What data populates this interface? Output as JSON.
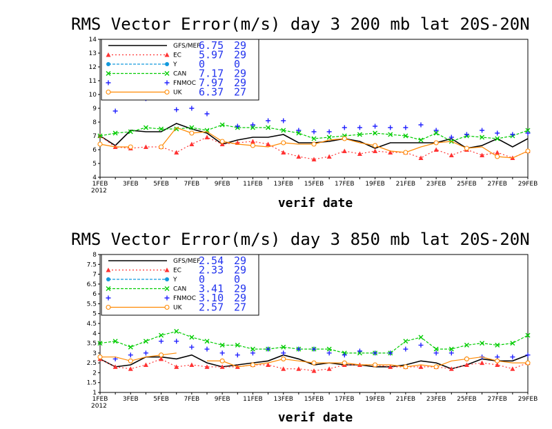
{
  "chart_data": [
    {
      "type": "line",
      "title": "RMS Vector Error(m/s) day 3  200 mb   lat 20S-20N",
      "xlabel": "verif date",
      "x_ticks": [
        "1FEB",
        "3FEB",
        "5FEB",
        "7FEB",
        "9FEB",
        "11FEB",
        "13FEB",
        "15FEB",
        "17FEB",
        "19FEB",
        "21FEB",
        "23FEB",
        "25FEB",
        "27FEB",
        "29FEB"
      ],
      "x_year_label": "2012",
      "ylim": [
        4,
        14
      ],
      "y_ticks": [
        "4",
        "5",
        "6",
        "7",
        "8",
        "9",
        "10",
        "11",
        "12",
        "13",
        "14"
      ],
      "days": [
        1,
        29
      ],
      "legend": [
        {
          "label": "GFS/MEF",
          "value": "6.75",
          "count": "29"
        },
        {
          "label": "EC",
          "value": "5.97",
          "count": "29"
        },
        {
          "label": "Y",
          "value": "0",
          "count": "0"
        },
        {
          "label": "CAN",
          "value": "7.17",
          "count": "29"
        },
        {
          "label": "FNMOC",
          "value": "7.97",
          "count": "29"
        },
        {
          "label": "UK",
          "value": "6.37",
          "count": "27"
        }
      ],
      "series": [
        {
          "name": "GFS/MEF",
          "color": "#000000",
          "style": "solid",
          "marker": "none",
          "values": [
            7.0,
            6.3,
            7.4,
            7.3,
            7.3,
            7.9,
            7.5,
            7.2,
            6.4,
            6.7,
            6.9,
            6.9,
            7.1,
            6.5,
            6.5,
            6.6,
            6.8,
            6.6,
            6.1,
            6.5,
            6.5,
            6.5,
            6.5,
            6.8,
            6.1,
            6.3,
            6.8,
            6.2,
            6.8
          ]
        },
        {
          "name": "EC",
          "color": "#ff3333",
          "style": "dotted",
          "marker": "triangle",
          "values": [
            7.0,
            6.2,
            6.1,
            6.2,
            6.2,
            5.8,
            6.4,
            6.9,
            6.4,
            6.5,
            6.6,
            6.4,
            5.8,
            5.5,
            5.3,
            5.5,
            5.9,
            5.7,
            5.9,
            5.8,
            5.8,
            5.4,
            6.0,
            5.6,
            6.0,
            5.6,
            5.8,
            5.4,
            5.9
          ]
        },
        {
          "name": "CAN",
          "color": "#00cc00",
          "style": "dashed",
          "marker": "x",
          "values": [
            7.0,
            7.2,
            7.3,
            7.6,
            7.5,
            7.5,
            7.6,
            7.4,
            7.8,
            7.6,
            7.6,
            7.6,
            7.4,
            7.2,
            6.8,
            6.9,
            7.0,
            7.1,
            7.2,
            7.1,
            7.0,
            6.7,
            7.2,
            6.6,
            7.0,
            6.9,
            6.8,
            7.0,
            7.4
          ]
        },
        {
          "name": "FNMOC",
          "color": "#2222ff",
          "style": "none",
          "marker": "plus",
          "values": [
            null,
            8.8,
            9.8,
            9.7,
            null,
            8.9,
            9.0,
            8.6,
            null,
            7.7,
            7.8,
            8.1,
            8.1,
            7.4,
            7.3,
            7.3,
            7.6,
            7.6,
            7.7,
            7.6,
            7.6,
            7.8,
            7.4,
            6.9,
            7.1,
            7.4,
            7.2,
            7.1,
            7.2
          ]
        },
        {
          "name": "UK",
          "color": "#ff8800",
          "style": "solid",
          "marker": "circle",
          "values": [
            6.4,
            6.2,
            6.2,
            null,
            6.2,
            7.6,
            7.2,
            7.3,
            6.6,
            6.4,
            6.3,
            6.2,
            6.5,
            6.4,
            6.4,
            6.7,
            6.8,
            6.5,
            6.3,
            5.9,
            5.8,
            6.2,
            6.5,
            6.6,
            6.1,
            6.2,
            5.5,
            5.4,
            5.9
          ]
        }
      ]
    },
    {
      "type": "line",
      "title": "RMS Vector Error(m/s) day 3  850 mb   lat 20S-20N",
      "xlabel": "verif date",
      "x_ticks": [
        "1FEB",
        "3FEB",
        "5FEB",
        "7FEB",
        "9FEB",
        "11FEB",
        "13FEB",
        "15FEB",
        "17FEB",
        "19FEB",
        "21FEB",
        "23FEB",
        "25FEB",
        "27FEB",
        "29FEB"
      ],
      "x_year_label": "2012",
      "ylim": [
        1,
        8
      ],
      "y_ticks": [
        "1",
        "1.5",
        "2",
        "2.5",
        "3",
        "3.5",
        "4",
        "4.5",
        "5",
        "5.5",
        "6",
        "6.5",
        "7",
        "7.5",
        "8"
      ],
      "days": [
        1,
        29
      ],
      "legend": [
        {
          "label": "GFS/MEF",
          "value": "2.54",
          "count": "29"
        },
        {
          "label": "EC",
          "value": "2.33",
          "count": "29"
        },
        {
          "label": "Y",
          "value": "0",
          "count": "0"
        },
        {
          "label": "CAN",
          "value": "3.41",
          "count": "29"
        },
        {
          "label": "FNMOC",
          "value": "3.10",
          "count": "29"
        },
        {
          "label": "UK",
          "value": "2.57",
          "count": "27"
        }
      ],
      "series": [
        {
          "name": "GFS/MEF",
          "color": "#000000",
          "style": "solid",
          "marker": "none",
          "values": [
            2.7,
            2.3,
            2.4,
            2.8,
            2.8,
            2.7,
            2.9,
            2.5,
            2.3,
            2.4,
            2.5,
            2.6,
            2.9,
            2.7,
            2.4,
            2.5,
            2.4,
            2.4,
            2.3,
            2.3,
            2.4,
            2.6,
            2.5,
            2.2,
            2.4,
            2.7,
            2.6,
            2.6,
            2.9
          ]
        },
        {
          "name": "EC",
          "color": "#ff3333",
          "style": "dotted",
          "marker": "triangle",
          "values": [
            2.7,
            2.3,
            2.2,
            2.4,
            2.7,
            2.3,
            2.4,
            2.3,
            2.3,
            2.3,
            2.4,
            2.4,
            2.2,
            2.2,
            2.1,
            2.2,
            2.4,
            2.4,
            2.4,
            2.3,
            2.3,
            2.3,
            2.3,
            2.2,
            2.4,
            2.5,
            2.4,
            2.2,
            2.5
          ]
        },
        {
          "name": "CAN",
          "color": "#00cc00",
          "style": "dashed",
          "marker": "x",
          "values": [
            3.5,
            3.6,
            3.3,
            3.6,
            3.9,
            4.1,
            3.8,
            3.6,
            3.4,
            3.4,
            3.2,
            3.2,
            3.3,
            3.2,
            3.2,
            3.2,
            3.0,
            3.0,
            3.0,
            3.0,
            3.6,
            3.8,
            3.2,
            3.2,
            3.4,
            3.5,
            3.4,
            3.5,
            3.9
          ]
        },
        {
          "name": "FNMOC",
          "color": "#2222ff",
          "style": "none",
          "marker": "plus",
          "values": [
            2.8,
            2.7,
            2.9,
            3.0,
            3.6,
            3.6,
            3.3,
            3.2,
            3.0,
            2.9,
            3.0,
            3.2,
            3.0,
            3.2,
            3.2,
            3.0,
            2.9,
            3.1,
            3.0,
            3.0,
            3.2,
            3.4,
            3.0,
            3.0,
            2.7,
            2.8,
            2.8,
            2.8,
            2.9
          ]
        },
        {
          "name": "UK",
          "color": "#ff8800",
          "style": "solid",
          "marker": "circle",
          "values": [
            2.8,
            2.8,
            2.6,
            2.8,
            2.9,
            3.0,
            null,
            2.6,
            2.6,
            2.3,
            2.4,
            2.5,
            2.7,
            2.6,
            2.5,
            2.5,
            2.5,
            2.4,
            2.4,
            2.4,
            2.3,
            2.4,
            2.3,
            2.6,
            2.7,
            2.8,
            2.6,
            2.5,
            2.5
          ]
        }
      ]
    }
  ]
}
